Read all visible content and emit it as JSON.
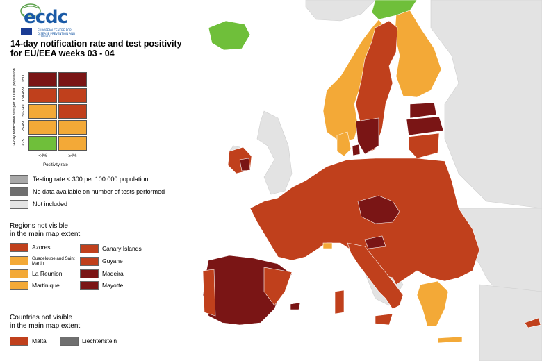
{
  "colors": {
    "dark_red": "#7a1515",
    "red": "#c0401c",
    "orange": "#f3a937",
    "green": "#6fbf3a",
    "grey": "#a8a8a8",
    "dark_grey": "#6f6f6f",
    "light_grey": "#e3e3e3",
    "sea": "#ffffff"
  },
  "header": {
    "logo_word": "ecdc",
    "logo_sub": "EUROPEAN CENTRE FOR DISEASE PREVENTION AND CONTROL",
    "title_line1": "14-day notification rate and test positivity",
    "title_line2": "for EU/EEA weeks 03 - 04"
  },
  "matrix": {
    "y_axis_label": "14-day notification rate per 100 000 population",
    "y_ticks": [
      "<25",
      "25-49",
      "50-149",
      "150-499",
      "≥500"
    ],
    "x_ticks": [
      "<4%",
      "≥4%"
    ],
    "x_axis_label": "Positivity rate"
  },
  "legend": {
    "testing_rate": "Testing rate < 300 per 100 000 population",
    "no_data": "No data available on number of tests performed",
    "not_included": "Not included"
  },
  "regions": {
    "heading_line1": "Regions not visible",
    "heading_line2": "in the main map extent",
    "items": [
      {
        "label": "Azores",
        "color": "#c0401c"
      },
      {
        "label": "Guadeloupe and Saint Martin",
        "color": "#f3a937"
      },
      {
        "label": "La Reunion",
        "color": "#f3a937"
      },
      {
        "label": "Martinique",
        "color": "#f3a937"
      },
      {
        "label": "Canary Islands",
        "color": "#c0401c"
      },
      {
        "label": "Guyane",
        "color": "#c0401c"
      },
      {
        "label": "Madeira",
        "color": "#7a1515"
      },
      {
        "label": "Mayotte",
        "color": "#7a1515"
      }
    ]
  },
  "countries": {
    "heading_line1": "Countries not visible",
    "heading_line2": "in the main map extent",
    "items": [
      {
        "label": "Malta",
        "color": "#c0401c"
      },
      {
        "label": "Liechtenstein",
        "color": "#6f6f6f"
      }
    ]
  }
}
